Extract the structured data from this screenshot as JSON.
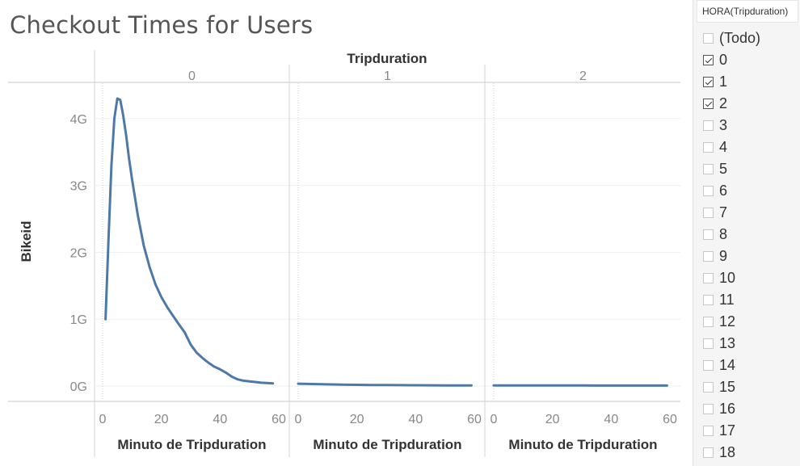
{
  "chart_data": {
    "type": "line",
    "title": "Checkout Times for Users",
    "column_header": "Tripduration",
    "ylabel": "Bikeid",
    "xlabel": "Minuto de Tripduration",
    "xlim": [
      0,
      60
    ],
    "ylim": [
      0,
      4.5
    ],
    "y_unit": "G",
    "x_ticks": [
      0,
      20,
      40,
      60
    ],
    "y_ticks": [
      0,
      1,
      2,
      3,
      4
    ],
    "y_tick_labels": [
      "0G",
      "1G",
      "2G",
      "3G",
      "4G"
    ],
    "line_color": "#4e79a7",
    "grid": true,
    "panels": [
      {
        "header": "0",
        "x": [
          1,
          2,
          3,
          4,
          5,
          6,
          7,
          8,
          9,
          10,
          12,
          14,
          16,
          18,
          20,
          22,
          24,
          26,
          28,
          30,
          32,
          34,
          36,
          38,
          40,
          42,
          44,
          46,
          48,
          50,
          52,
          54,
          56,
          58
        ],
        "y": [
          1.0,
          2.2,
          3.3,
          4.0,
          4.3,
          4.28,
          4.05,
          3.75,
          3.4,
          3.1,
          2.55,
          2.1,
          1.78,
          1.52,
          1.33,
          1.18,
          1.05,
          0.92,
          0.8,
          0.62,
          0.5,
          0.42,
          0.35,
          0.29,
          0.25,
          0.2,
          0.14,
          0.1,
          0.08,
          0.07,
          0.06,
          0.05,
          0.045,
          0.04
        ]
      },
      {
        "header": "1",
        "x": [
          0,
          5,
          10,
          15,
          20,
          25,
          30,
          35,
          40,
          45,
          50,
          55,
          59
        ],
        "y": [
          0.035,
          0.03,
          0.025,
          0.02,
          0.018,
          0.016,
          0.015,
          0.013,
          0.012,
          0.011,
          0.01,
          0.01,
          0.009
        ]
      },
      {
        "header": "2",
        "x": [
          0,
          5,
          10,
          15,
          20,
          25,
          30,
          35,
          40,
          45,
          50,
          55,
          59
        ],
        "y": [
          0.01,
          0.009,
          0.009,
          0.008,
          0.008,
          0.008,
          0.008,
          0.007,
          0.007,
          0.007,
          0.007,
          0.007,
          0.007
        ]
      }
    ]
  },
  "filter": {
    "title": "HORA(Tripduration)",
    "items": [
      {
        "label": "(Todo)",
        "checked": false
      },
      {
        "label": "0",
        "checked": true
      },
      {
        "label": "1",
        "checked": true
      },
      {
        "label": "2",
        "checked": true
      },
      {
        "label": "3",
        "checked": false
      },
      {
        "label": "4",
        "checked": false
      },
      {
        "label": "5",
        "checked": false
      },
      {
        "label": "6",
        "checked": false
      },
      {
        "label": "7",
        "checked": false
      },
      {
        "label": "8",
        "checked": false
      },
      {
        "label": "9",
        "checked": false
      },
      {
        "label": "10",
        "checked": false
      },
      {
        "label": "11",
        "checked": false
      },
      {
        "label": "12",
        "checked": false
      },
      {
        "label": "13",
        "checked": false
      },
      {
        "label": "14",
        "checked": false
      },
      {
        "label": "15",
        "checked": false
      },
      {
        "label": "16",
        "checked": false
      },
      {
        "label": "17",
        "checked": false
      },
      {
        "label": "18",
        "checked": false
      }
    ]
  }
}
